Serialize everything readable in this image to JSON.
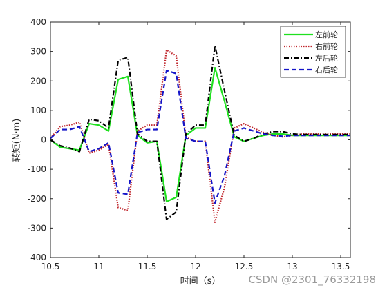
{
  "watermark": "CSDN @2301_76332198",
  "chart_data": {
    "type": "line",
    "title": "",
    "xlabel": "时间（s）",
    "ylabel": "转矩(N·m)",
    "xlim": [
      10.5,
      13.6
    ],
    "ylim": [
      -400,
      400
    ],
    "xticks": [
      "10.5",
      "11",
      "11.5",
      "12",
      "12.5",
      "13",
      "13.5"
    ],
    "yticks": [
      "-400",
      "-300",
      "-200",
      "-100",
      "0",
      "100",
      "200",
      "300",
      "400"
    ],
    "grid": false,
    "legend_position": "top-right",
    "series": [
      {
        "name": "左前轮",
        "color": "#1fe01f",
        "style": "solid",
        "x": [
          10.5,
          10.6,
          10.7,
          10.8,
          10.9,
          11.0,
          11.1,
          11.2,
          11.3,
          11.4,
          11.5,
          11.6,
          11.7,
          11.8,
          11.9,
          12.0,
          12.1,
          12.2,
          12.3,
          12.4,
          12.5,
          12.6,
          12.7,
          12.8,
          12.9,
          13.0,
          13.1,
          13.2,
          13.3,
          13.4,
          13.5,
          13.6
        ],
        "values": [
          0,
          -25,
          -30,
          -35,
          55,
          50,
          30,
          205,
          215,
          15,
          -10,
          -5,
          -210,
          -195,
          15,
          40,
          40,
          245,
          130,
          10,
          -5,
          5,
          15,
          20,
          20,
          15,
          15,
          15,
          15,
          15,
          15,
          15
        ]
      },
      {
        "name": "右前轮",
        "color": "#c0262c",
        "style": "dotted",
        "x": [
          10.5,
          10.6,
          10.7,
          10.8,
          10.9,
          11.0,
          11.1,
          11.2,
          11.3,
          11.4,
          11.5,
          11.6,
          11.7,
          11.8,
          11.9,
          12.0,
          12.1,
          12.2,
          12.3,
          12.4,
          12.5,
          12.6,
          12.7,
          12.8,
          12.9,
          13.0,
          13.1,
          13.2,
          13.3,
          13.4,
          13.5,
          13.6
        ],
        "values": [
          5,
          45,
          50,
          60,
          -45,
          -35,
          -15,
          -230,
          -240,
          30,
          50,
          50,
          305,
          285,
          10,
          -5,
          -5,
          -280,
          -160,
          40,
          55,
          40,
          25,
          15,
          10,
          15,
          20,
          20,
          20,
          20,
          20,
          20
        ]
      },
      {
        "name": "左后轮",
        "color": "#000000",
        "style": "dashdot",
        "x": [
          10.5,
          10.6,
          10.7,
          10.8,
          10.9,
          11.0,
          11.1,
          11.2,
          11.3,
          11.4,
          11.5,
          11.6,
          11.7,
          11.8,
          11.9,
          12.0,
          12.1,
          12.2,
          12.3,
          12.4,
          12.5,
          12.6,
          12.7,
          12.8,
          12.9,
          13.0,
          13.1,
          13.2,
          13.3,
          13.4,
          13.5,
          13.6
        ],
        "values": [
          0,
          -20,
          -28,
          -40,
          70,
          65,
          40,
          270,
          280,
          20,
          -5,
          -5,
          -270,
          -245,
          20,
          50,
          50,
          320,
          165,
          15,
          -5,
          5,
          20,
          28,
          28,
          20,
          18,
          18,
          18,
          18,
          18,
          18
        ]
      },
      {
        "name": "右后轮",
        "color": "#1515c8",
        "style": "dashed",
        "x": [
          10.5,
          10.6,
          10.7,
          10.8,
          10.9,
          11.0,
          11.1,
          11.2,
          11.3,
          11.4,
          11.5,
          11.6,
          11.7,
          11.8,
          11.9,
          12.0,
          12.1,
          12.2,
          12.3,
          12.4,
          12.5,
          12.6,
          12.7,
          12.8,
          12.9,
          13.0,
          13.1,
          13.2,
          13.3,
          13.4,
          13.5,
          13.6
        ],
        "values": [
          5,
          35,
          35,
          45,
          -40,
          -30,
          -10,
          -180,
          -185,
          25,
          35,
          35,
          235,
          225,
          5,
          -5,
          -5,
          -215,
          -120,
          30,
          40,
          30,
          20,
          15,
          12,
          15,
          15,
          15,
          15,
          15,
          15,
          15
        ]
      }
    ]
  }
}
